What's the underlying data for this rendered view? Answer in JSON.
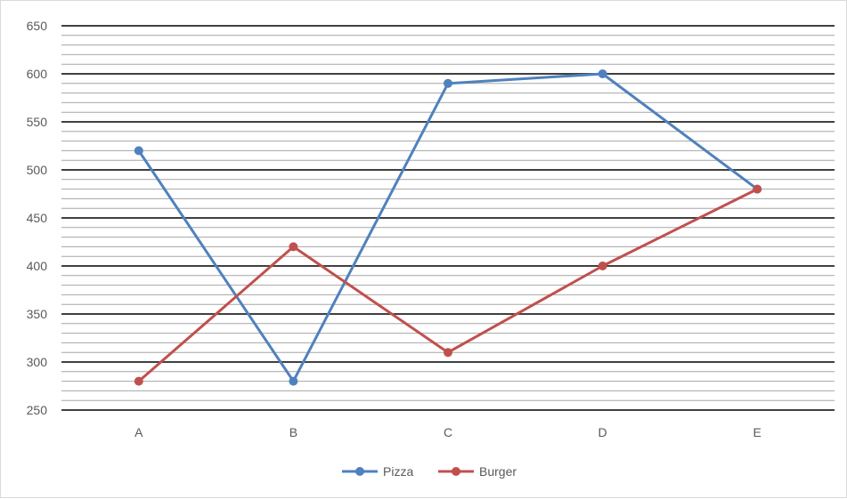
{
  "chart_data": {
    "type": "line",
    "categories": [
      "A",
      "B",
      "C",
      "D",
      "E"
    ],
    "series": [
      {
        "name": "Pizza",
        "values": [
          520,
          280,
          590,
          600,
          480
        ],
        "color": "#4f81bd"
      },
      {
        "name": "Burger",
        "values": [
          280,
          420,
          310,
          400,
          480
        ],
        "color": "#c0504d"
      }
    ],
    "ylim": [
      250,
      650
    ],
    "yticks": [
      250,
      300,
      350,
      400,
      450,
      500,
      550,
      600,
      650
    ],
    "major_grid_step": 50,
    "minor_grid_step": 10,
    "grid": true,
    "legend_position": "bottom",
    "title": "",
    "xlabel": "",
    "ylabel": ""
  }
}
